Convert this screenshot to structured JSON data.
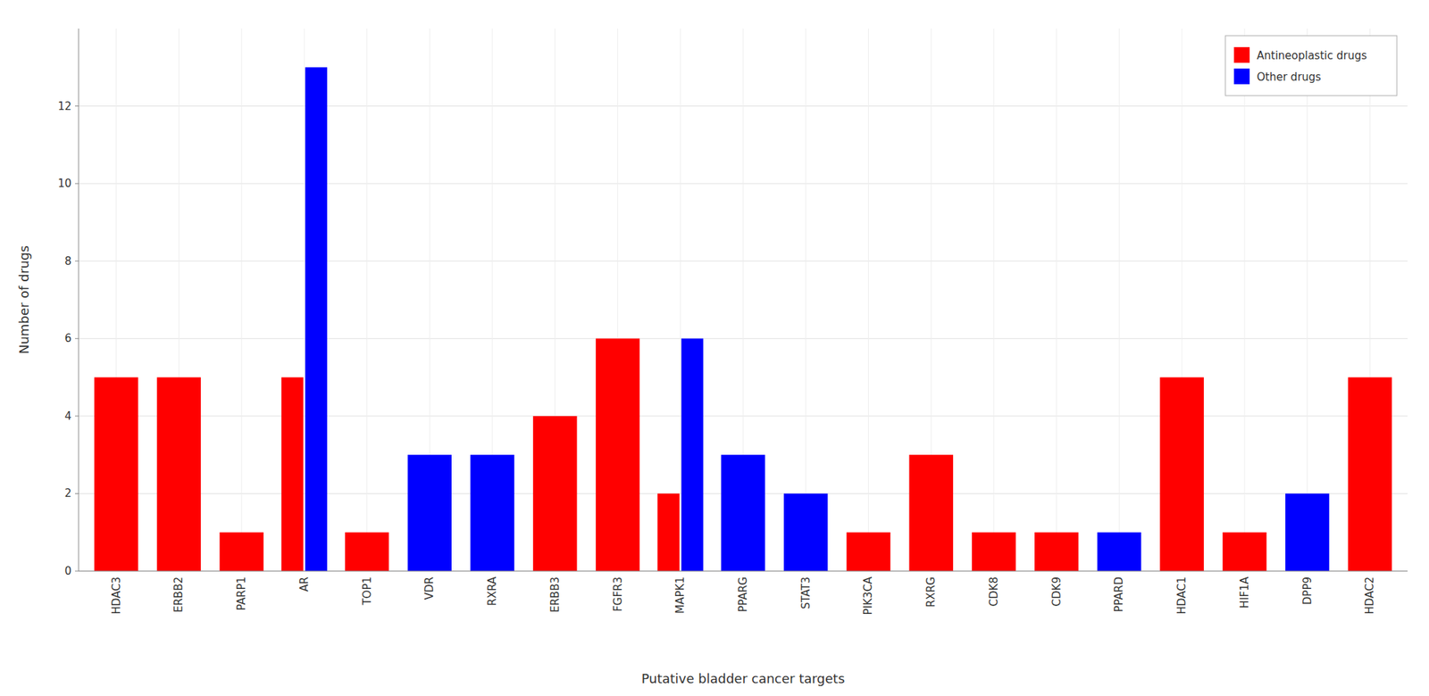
{
  "chart_data": {
    "type": "bar",
    "xlabel": "Putative bladder cancer targets",
    "ylabel": "Number of drugs",
    "categories": [
      "HDAC3",
      "ERBB2",
      "PARP1",
      "AR",
      "TOP1",
      "VDR",
      "RXRA",
      "ERBB3",
      "FGFR3",
      "MAPK1",
      "PPARG",
      "STAT3",
      "PIK3CA",
      "RXRG",
      "CDK8",
      "CDK9",
      "PPARD",
      "HDAC1",
      "HIF1A",
      "DPP9",
      "HDAC2"
    ],
    "series": [
      {
        "name": "Antineoplastic drugs",
        "color": "#ff0000",
        "values": [
          5,
          5,
          1,
          5,
          1,
          0,
          0,
          4,
          6,
          2,
          0,
          0,
          1,
          3,
          1,
          1,
          0,
          5,
          1,
          0,
          5
        ]
      },
      {
        "name": "Other drugs",
        "color": "#0000ff",
        "values": [
          0,
          0,
          0,
          13,
          0,
          3,
          3,
          0,
          0,
          6,
          3,
          2,
          0,
          0,
          0,
          0,
          1,
          0,
          0,
          2,
          0
        ]
      }
    ],
    "ylim": [
      0,
      14
    ],
    "yticks": [
      0,
      2,
      4,
      6,
      8,
      10,
      12
    ],
    "grid": true,
    "legend": "upper right"
  }
}
